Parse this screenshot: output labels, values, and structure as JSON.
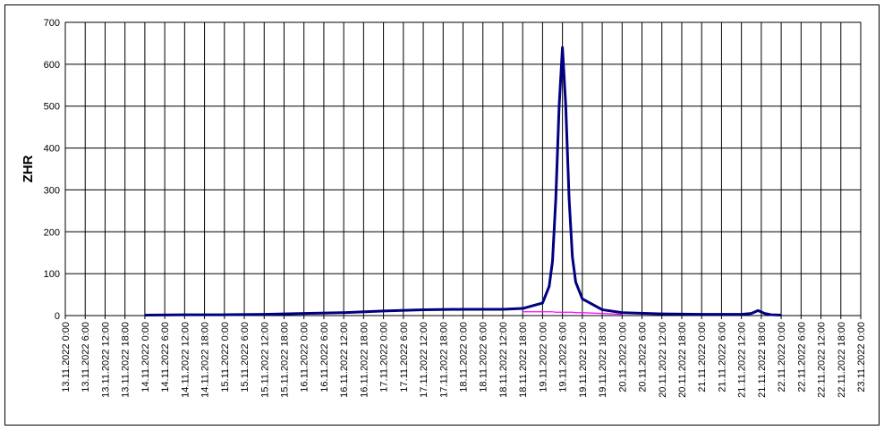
{
  "chart_data": {
    "type": "line",
    "y_label": "ZHR",
    "xlim": [
      "13.11.2022 0:00",
      "23.11.2022 0:00"
    ],
    "xticks": [
      "13.11.2022 0:00",
      "13.11.2022 6:00",
      "13.11.2022 12:00",
      "13.11.2022 18:00",
      "14.11.2022 0:00",
      "14.11.2022 6:00",
      "14.11.2022 12:00",
      "14.11.2022 18:00",
      "15.11.2022 0:00",
      "15.11.2022 6:00",
      "15.11.2022 12:00",
      "15.11.2022 18:00",
      "16.11.2022 0:00",
      "16.11.2022 6:00",
      "16.11.2022 12:00",
      "16.11.2022 18:00",
      "17.11.2022 0:00",
      "17.11.2022 6:00",
      "17.11.2022 12:00",
      "17.11.2022 18:00",
      "18.11.2022 0:00",
      "18.11.2022 6:00",
      "18.11.2022 12:00",
      "18.11.2022 18:00",
      "19.11.2022 0:00",
      "19.11.2022 6:00",
      "19.11.2022 12:00",
      "19.11.2022 18:00",
      "20.11.2022 0:00",
      "20.11.2022 6:00",
      "20.11.2022 12:00",
      "20.11.2022 18:00",
      "21.11.2022 0:00",
      "21.11.2022 6:00",
      "21.11.2022 12:00",
      "21.11.2022 18:00",
      "22.11.2022 0:00",
      "22.11.2022 6:00",
      "22.11.2022 12:00",
      "22.11.2022 18:00",
      "23.11.2022 0:00"
    ],
    "x": [
      "14.11.2022 0:00",
      "14.11.2022 12:00",
      "15.11.2022 0:00",
      "15.11.2022 12:00",
      "16.11.2022 0:00",
      "16.11.2022 12:00",
      "17.11.2022 0:00",
      "17.11.2022 12:00",
      "18.11.2022 0:00",
      "18.11.2022 12:00",
      "18.11.2022 18:00",
      "19.11.2022 0:00",
      "19.11.2022 2:00",
      "19.11.2022 3:00",
      "19.11.2022 4:00",
      "19.11.2022 5:00",
      "19.11.2022 6:00",
      "19.11.2022 7:00",
      "19.11.2022 8:00",
      "19.11.2022 9:00",
      "19.11.2022 10:00",
      "19.11.2022 12:00",
      "19.11.2022 18:00",
      "20.11.2022 0:00",
      "20.11.2022 12:00",
      "21.11.2022 0:00",
      "21.11.2022 12:00",
      "21.11.2022 15:00",
      "21.11.2022 17:00",
      "21.11.2022 19:00",
      "21.11.2022 21:00",
      "22.11.2022 0:00"
    ],
    "series": [
      {
        "color": "#000080",
        "values": [
          1,
          2,
          2,
          3,
          5,
          7,
          11,
          14,
          15,
          15,
          17,
          30,
          70,
          130,
          280,
          500,
          640,
          500,
          280,
          140,
          80,
          40,
          14,
          7,
          4,
          3,
          3,
          5,
          12,
          5,
          2,
          1
        ]
      },
      {
        "color": "#ff00ff",
        "values": [
          null,
          null,
          null,
          null,
          null,
          null,
          null,
          null,
          null,
          null,
          9,
          9,
          9,
          9,
          8,
          8,
          8,
          8,
          8,
          8,
          7,
          7,
          5,
          3,
          null,
          null,
          null,
          null,
          null,
          null,
          null,
          null
        ]
      }
    ],
    "ylim": [
      0,
      700
    ],
    "yticks": [
      0,
      100,
      200,
      300,
      400,
      500,
      600,
      700
    ],
    "grid": true
  }
}
